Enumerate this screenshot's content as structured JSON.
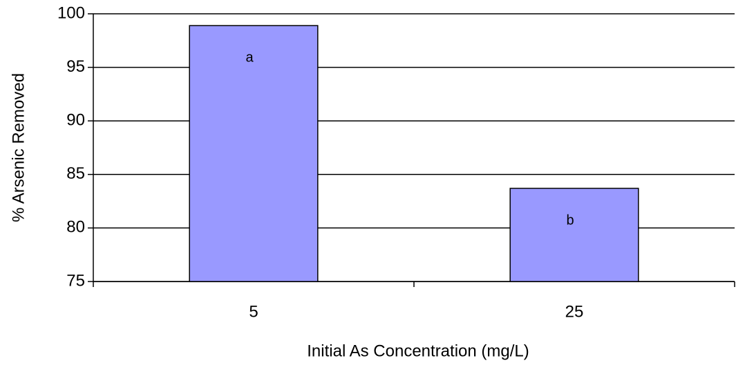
{
  "chart_data": {
    "type": "bar",
    "x_label": "Initial As Concentration (mg/L)",
    "y_label": "% Arsenic Removed",
    "categories": [
      "5",
      "25"
    ],
    "values": [
      98.9,
      83.7
    ],
    "annotations": [
      "a",
      "b"
    ],
    "color": "#9999ff",
    "ylim": [
      75,
      100
    ],
    "yticks": [
      75,
      80,
      85,
      90,
      95,
      100
    ],
    "grid": true
  }
}
